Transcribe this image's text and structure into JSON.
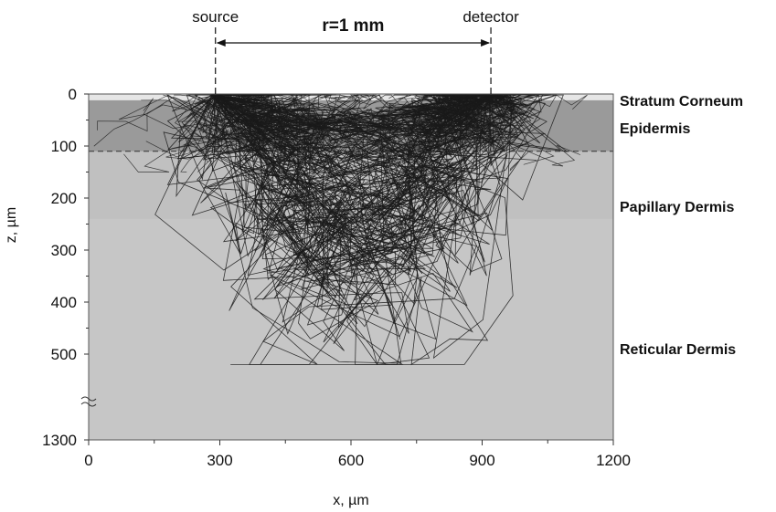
{
  "chart_data": {
    "type": "scatter",
    "description_kind": "monte-carlo photon paths in skin layers",
    "xlabel": "x, µm",
    "ylabel": "z, µm",
    "xlim": [
      0,
      1200
    ],
    "ylim": [
      0,
      540
    ],
    "y_axis_inverted": true,
    "y_axis_break": {
      "from": 540,
      "to": 1300
    },
    "x_ticks": [
      "0",
      "300",
      "600",
      "900",
      "1200"
    ],
    "y_ticks": [
      "0",
      "100",
      "200",
      "300",
      "400",
      "500",
      "1300"
    ],
    "source": {
      "label": "source",
      "x": 290
    },
    "detector": {
      "label": "detector",
      "x": 920
    },
    "distance_label": "r=1 mm",
    "layers": [
      {
        "name": "Stratum Corneum",
        "z_from": 0,
        "z_to": 12,
        "color": "#e8e8e8",
        "label_z": 10
      },
      {
        "name": "Epidermis",
        "z_from": 12,
        "z_to": 110,
        "color": "#9a9a9a",
        "label_z": 70
      },
      {
        "name": "Papillary Dermis",
        "z_from": 110,
        "z_to": 240,
        "color": "#c2c2c2",
        "label_z": 210
      },
      {
        "name": "Reticular Dermis",
        "z_from": 240,
        "z_to": 540,
        "color": "#c6c6c6",
        "label_z": 490
      }
    ],
    "epidermis_boundary_z": 110,
    "grid": false,
    "colors": {
      "paths": "#1a1a1a",
      "frame": "#555555"
    }
  }
}
